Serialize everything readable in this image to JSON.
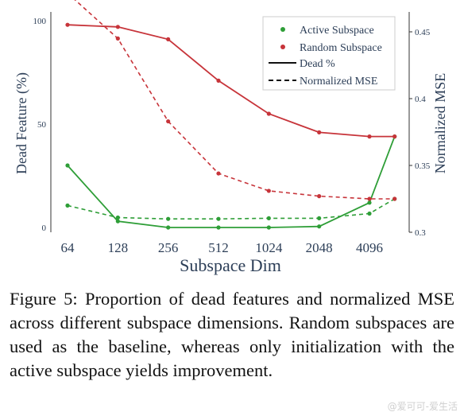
{
  "chart_data": {
    "type": "line",
    "categories": [
      "64",
      "128",
      "256",
      "512",
      "1024",
      "2048",
      "4096"
    ],
    "xlabel": "Subspace Dim",
    "ylabel_left": "Dead Feature (%)",
    "ylabel_right": "Normalized MSE",
    "ylim_left": [
      0,
      100
    ],
    "ylim_right": [
      0.3,
      0.48
    ],
    "yticks_left": [
      "0",
      "50",
      "100"
    ],
    "yticks_right": [
      "0.3",
      "0.35",
      "0.4",
      "0.45"
    ],
    "grid": false,
    "legend_position": "top-right",
    "legend": [
      "Active Subspace",
      "Random Subspace",
      "Dead %",
      "Normalized MSE"
    ],
    "colors": {
      "active": "#2e9e37",
      "random": "#c7343a",
      "axis": "#2c3e57"
    },
    "series": [
      {
        "name": "Active Subspace",
        "metric": "Dead %",
        "axis": "left",
        "style": "solid",
        "color": "#2e9e37",
        "x": [
          0,
          1,
          2,
          3,
          4,
          5,
          6,
          6.5
        ],
        "values": [
          30,
          3,
          0,
          0,
          0,
          0.5,
          12,
          44
        ]
      },
      {
        "name": "Random Subspace",
        "metric": "Dead %",
        "axis": "left",
        "style": "solid",
        "color": "#c7343a",
        "x": [
          0,
          1,
          2,
          3,
          4,
          5,
          6,
          6.5
        ],
        "values": [
          98,
          97,
          91,
          71,
          55,
          46,
          44,
          44
        ]
      },
      {
        "name": "Active Subspace",
        "metric": "Normalized MSE",
        "axis": "right",
        "style": "dashed",
        "color": "#2e9e37",
        "x": [
          0,
          1,
          2,
          3,
          4,
          5,
          6,
          6.5
        ],
        "values": [
          0.32,
          0.311,
          0.31,
          0.31,
          0.3105,
          0.3105,
          0.314,
          0.325
        ]
      },
      {
        "name": "Random Subspace",
        "metric": "Normalized MSE",
        "axis": "right",
        "style": "dashed",
        "color": "#c7343a",
        "x": [
          0,
          1,
          2,
          3,
          4,
          5,
          6,
          6.5
        ],
        "values": [
          0.479,
          0.445,
          0.383,
          0.344,
          0.331,
          0.327,
          0.325,
          0.325
        ]
      }
    ]
  },
  "caption": "Figure 5: Proportion of dead features and normalized MSE across different subspace dimensions. Random subspaces are used as the baseline, whereas only initialization with the active subspace yields improvement.",
  "watermark": "@爱可可-爱生活"
}
